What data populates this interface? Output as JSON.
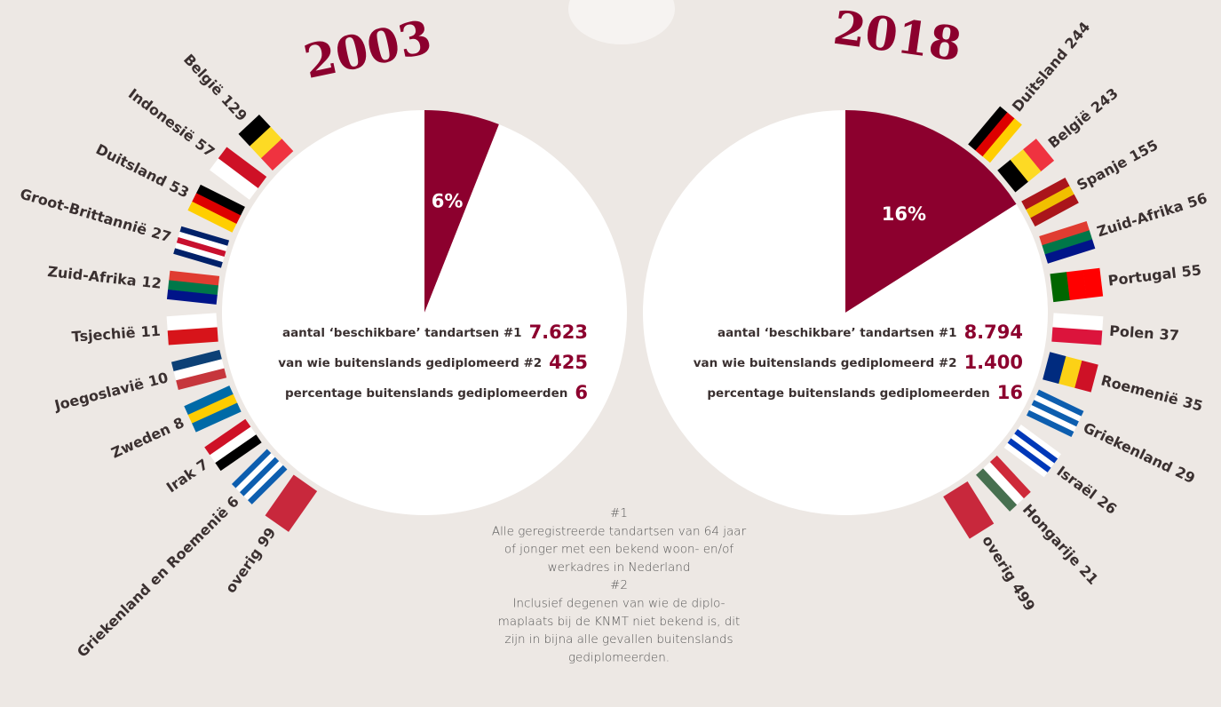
{
  "chart_data": [
    {
      "type": "pie",
      "title": "2003",
      "values": [
        6,
        94
      ],
      "value_labels": [
        "6%",
        null
      ],
      "colors": [
        "#8c002e",
        "#ffffff"
      ],
      "stats": [
        {
          "label": "aantal ‘beschikbare’ tandartsen #1",
          "value": "7.623"
        },
        {
          "label": "van wie buitenslands gediplomeerd #2",
          "value": "425"
        },
        {
          "label": "percentage buitenslands gediplomeerden",
          "value": "6"
        }
      ],
      "countries": [
        {
          "name": "België",
          "count": 129
        },
        {
          "name": "Indonesië",
          "count": 57
        },
        {
          "name": "Duitsland",
          "count": 53
        },
        {
          "name": "Groot-Brittannië",
          "count": 27
        },
        {
          "name": "Zuid-Afrika",
          "count": 12
        },
        {
          "name": "Tsjechië",
          "count": 11
        },
        {
          "name": "Joegoslavië",
          "count": 10
        },
        {
          "name": "Zweden",
          "count": 8
        },
        {
          "name": "Irak",
          "count": 7
        },
        {
          "name": "Griekenland en Roemenië",
          "count": 6
        },
        {
          "name": "overig",
          "count": 99
        }
      ]
    },
    {
      "type": "pie",
      "title": "2018",
      "values": [
        16,
        84
      ],
      "value_labels": [
        "16%",
        null
      ],
      "colors": [
        "#8c002e",
        "#ffffff"
      ],
      "stats": [
        {
          "label": "aantal ‘beschikbare’ tandartsen #1",
          "value": "8.794"
        },
        {
          "label": "van wie buitenslands gediplomeerd #2",
          "value": "1.400"
        },
        {
          "label": "percentage buitenslands gediplomeerden",
          "value": "16"
        }
      ],
      "countries": [
        {
          "name": "Duitsland",
          "count": 244
        },
        {
          "name": "België",
          "count": 243
        },
        {
          "name": "Spanje",
          "count": 155
        },
        {
          "name": "Zuid-Afrika",
          "count": 56
        },
        {
          "name": "Portugal",
          "count": 55
        },
        {
          "name": "Polen",
          "count": 37
        },
        {
          "name": "Roemenië",
          "count": 35
        },
        {
          "name": "Griekenland",
          "count": 29
        },
        {
          "name": "Israël",
          "count": 26
        },
        {
          "name": "Hongarije",
          "count": 21
        },
        {
          "name": "overig",
          "count": 499
        }
      ]
    }
  ],
  "notes": [
    "#1",
    "Alle geregistreerde tandartsen van 64 jaar",
    "of jonger met een bekend woon- en/of",
    "werkadres in Nederland",
    "#2",
    "Inclusief degenen van wie de diplo-",
    "maplaats bij de KNMT niet bekend is, dit",
    "zijn in bijna alle gevallen buitenslands",
    "gediplomeerden."
  ]
}
